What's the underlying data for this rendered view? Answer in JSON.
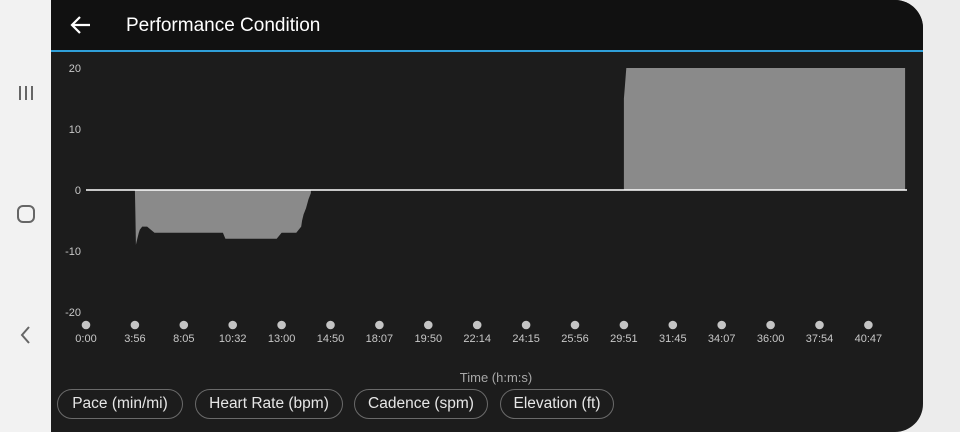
{
  "app": {
    "title": "Performance Condition"
  },
  "icons": {
    "back": "arrow-left-icon",
    "recents": "recent-apps-icon",
    "home": "home-icon",
    "nav_back": "chevron-left-icon"
  },
  "colors": {
    "accent": "#2f9fd8",
    "area": "#8a8a8a",
    "background": "#1c1c1c"
  },
  "chart_data": {
    "type": "area",
    "xlabel": "Time (h:m:s)",
    "ylabel": "",
    "ylim": [
      -20,
      20
    ],
    "yticks": [
      20,
      10,
      0,
      -10,
      -20
    ],
    "xticks": [
      "0:00",
      "3:56",
      "8:05",
      "10:32",
      "13:00",
      "14:50",
      "18:07",
      "19:50",
      "22:14",
      "24:15",
      "25:56",
      "29:51",
      "31:45",
      "34:07",
      "36:00",
      "37:54",
      "40:47"
    ],
    "grid": false,
    "series": [
      {
        "x_index": [
          0.0,
          1.0,
          1.01,
          1.02,
          1.05,
          1.08,
          1.1,
          1.15,
          1.25,
          1.4,
          1.5,
          1.8,
          2.0,
          2.5,
          2.8,
          2.85,
          3.3,
          3.9,
          4.0,
          4.3,
          4.4,
          4.42,
          4.45,
          4.5,
          4.55,
          4.6,
          4.6,
          11.0,
          11.0,
          11.02,
          11.05,
          11.3,
          16.75,
          16.75,
          17.5
        ],
        "values": [
          0,
          0,
          -4,
          -9,
          -8,
          -7,
          -6.5,
          -6,
          -6,
          -7,
          -7,
          -7,
          -7,
          -7,
          -7,
          -8,
          -8,
          -8,
          -7,
          -7,
          -6,
          -5,
          -4,
          -3,
          -1.5,
          -0.5,
          0,
          0,
          15,
          17,
          20,
          20,
          20,
          0,
          0
        ]
      }
    ]
  },
  "chips": [
    {
      "label": "Pace (min/mi)"
    },
    {
      "label": "Heart Rate (bpm)"
    },
    {
      "label": "Cadence (spm)"
    },
    {
      "label": "Elevation (ft)"
    }
  ]
}
